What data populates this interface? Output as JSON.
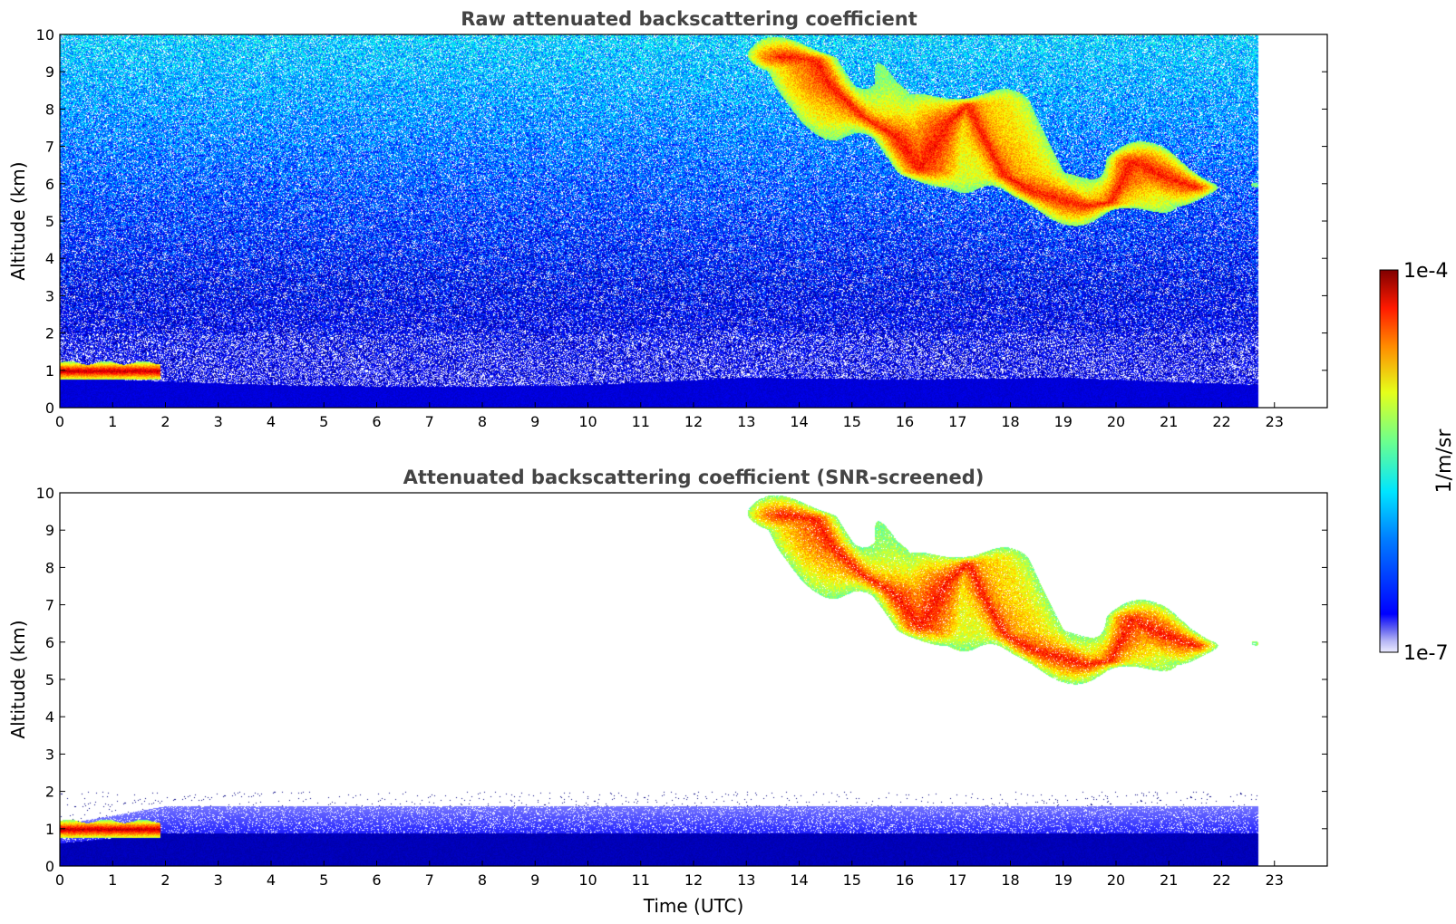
{
  "chart_data": [
    {
      "type": "heatmap",
      "title": "Raw attenuated backscattering coefficient",
      "xlabel": "",
      "ylabel": "Altitude (km)",
      "xlim": [
        0,
        24
      ],
      "ylim": [
        0,
        10
      ],
      "x_ticks": [
        0,
        1,
        2,
        3,
        4,
        5,
        6,
        7,
        8,
        9,
        10,
        11,
        12,
        13,
        14,
        15,
        16,
        17,
        18,
        19,
        20,
        21,
        22,
        23
      ],
      "y_ticks": [
        0,
        1,
        2,
        3,
        4,
        5,
        6,
        7,
        8,
        9,
        10
      ],
      "data_end_time": 22.7,
      "noise": "dense",
      "features": [
        {
          "name": "boundary layer",
          "t_start": 0,
          "t_end": 22.7,
          "top_km_by_time": [
            [
              0,
              0.8
            ],
            [
              2,
              0.7
            ],
            [
              4,
              0.6
            ],
            [
              7,
              0.55
            ],
            [
              10,
              0.6
            ],
            [
              13,
              0.8
            ],
            [
              16,
              0.75
            ],
            [
              19,
              0.8
            ],
            [
              22.7,
              0.6
            ]
          ],
          "level": 0.18
        },
        {
          "name": "low cloud",
          "t_start": 0,
          "t_end": 1.9,
          "alt_km": [
            0.75,
            1.2
          ],
          "level": 0.95
        },
        {
          "name": "cirrus",
          "points": [
            [
              13.7,
              9.4
            ],
            [
              14.3,
              9.3
            ],
            [
              14.6,
              8.6
            ],
            [
              15.2,
              7.8
            ],
            [
              15.8,
              7.3
            ],
            [
              16.3,
              6.4
            ],
            [
              16.8,
              7.6
            ],
            [
              17.2,
              8.1
            ],
            [
              17.5,
              7.2
            ],
            [
              17.9,
              6.2
            ],
            [
              18.4,
              5.8
            ],
            [
              18.9,
              5.6
            ],
            [
              19.4,
              5.4
            ],
            [
              19.9,
              5.5
            ],
            [
              20.3,
              6.6
            ],
            [
              20.9,
              6.2
            ],
            [
              21.5,
              5.9
            ]
          ],
          "half_width_km": 0.45,
          "level": 0.7
        }
      ]
    },
    {
      "type": "heatmap",
      "title": "Attenuated backscattering coefficient (SNR-screened)",
      "xlabel": "Time (UTC)",
      "ylabel": "Altitude (km)",
      "xlim": [
        0,
        24
      ],
      "ylim": [
        0,
        10
      ],
      "x_ticks": [
        0,
        1,
        2,
        3,
        4,
        5,
        6,
        7,
        8,
        9,
        10,
        11,
        12,
        13,
        14,
        15,
        16,
        17,
        18,
        19,
        20,
        21,
        22,
        23
      ],
      "y_ticks": [
        0,
        1,
        2,
        3,
        4,
        5,
        6,
        7,
        8,
        9,
        10
      ],
      "data_end_time": 22.7,
      "noise": "screened",
      "features": [
        {
          "name": "boundary layer",
          "t_start": 0,
          "t_end": 22.7,
          "top_km_by_time": [
            [
              0,
              1.1
            ],
            [
              2,
              1.6
            ],
            [
              5,
              1.6
            ],
            [
              10,
              1.6
            ],
            [
              15,
              1.6
            ],
            [
              20,
              1.6
            ],
            [
              22.7,
              1.6
            ]
          ],
          "level": 0.08
        },
        {
          "name": "low cloud",
          "t_start": 0,
          "t_end": 1.9,
          "alt_km": [
            0.75,
            1.2
          ],
          "level": 0.95
        },
        {
          "name": "cirrus",
          "points": [
            [
              13.7,
              9.4
            ],
            [
              14.3,
              9.3
            ],
            [
              14.6,
              8.6
            ],
            [
              15.2,
              7.8
            ],
            [
              15.8,
              7.3
            ],
            [
              16.3,
              6.4
            ],
            [
              16.8,
              7.6
            ],
            [
              17.2,
              8.1
            ],
            [
              17.5,
              7.2
            ],
            [
              17.9,
              6.2
            ],
            [
              18.4,
              5.8
            ],
            [
              18.9,
              5.6
            ],
            [
              19.4,
              5.4
            ],
            [
              19.9,
              5.5
            ],
            [
              20.3,
              6.6
            ],
            [
              20.9,
              6.2
            ],
            [
              21.5,
              5.9
            ]
          ],
          "half_width_km": 0.45,
          "level": 0.7
        }
      ]
    }
  ],
  "colorbar": {
    "label": "1/m/sr",
    "max_label": "1e-4",
    "min_label": "1e-7",
    "scale": "log",
    "colormap": "jet"
  }
}
